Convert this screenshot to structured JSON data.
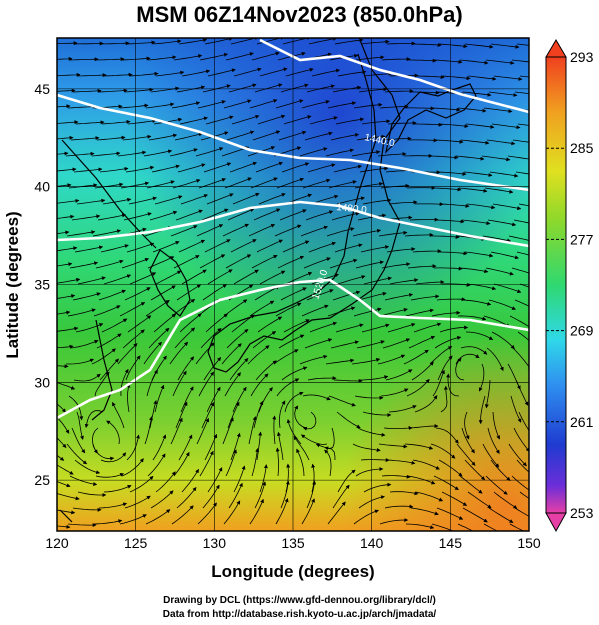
{
  "title": "MSM 06Z14Nov2023 (850.0hPa)",
  "x_axis": {
    "label": "Longitude (degrees)",
    "ticks": [
      "120",
      "125",
      "130",
      "135",
      "140",
      "145",
      "150"
    ],
    "range": [
      120,
      150
    ]
  },
  "y_axis": {
    "label": "Latitude  (degrees)",
    "ticks": [
      "25",
      "30",
      "35",
      "40",
      "45"
    ],
    "range": [
      22.4,
      47.6
    ]
  },
  "colorbar": {
    "labels": [
      "293",
      "285",
      "277",
      "269",
      "261",
      "253"
    ],
    "min": 253,
    "max": 293,
    "colors": [
      "#e63fa6",
      "#6b2ed8",
      "#1f3bd0",
      "#2f8ff0",
      "#2fd8e8",
      "#2fd870",
      "#38c83a",
      "#8cd82c",
      "#e0e020",
      "#f0a020",
      "#f04020"
    ]
  },
  "contours": [
    {
      "label": "1440.0"
    },
    {
      "label": "1480.0"
    },
    {
      "label": "1520.0"
    }
  ],
  "credits": {
    "line1": "Drawing by DCL (https://www.gfd-dennou.org/library/dcl/)",
    "line2": "Data from http://database.rish.kyoto-u.ac.jp/arch/jmadata/"
  }
}
